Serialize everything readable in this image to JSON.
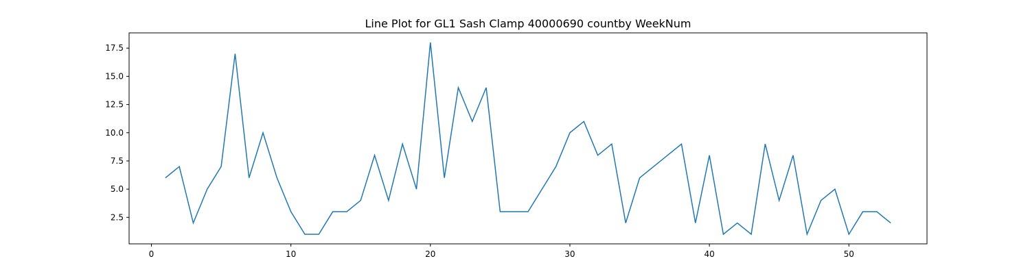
{
  "chart_data": {
    "type": "line",
    "title": "Line Plot for GL1 Sash Clamp 40000690 countby WeekNum",
    "xlabel": "",
    "ylabel": "",
    "xlim": [
      -1.6,
      55.6
    ],
    "ylim": [
      0.15,
      18.85
    ],
    "xticks": [
      0,
      10,
      20,
      30,
      40,
      50
    ],
    "yticks": [
      2.5,
      5.0,
      7.5,
      10.0,
      12.5,
      15.0,
      17.5
    ],
    "ytick_labels": [
      "2.5",
      "5.0",
      "7.5",
      "10.0",
      "12.5",
      "15.0",
      "17.5"
    ],
    "grid": false,
    "line_color": "#1f77b4",
    "series": [
      {
        "x": [
          1,
          2,
          3,
          4,
          5,
          6,
          7,
          8,
          9,
          10,
          11,
          12,
          13,
          14,
          15,
          16,
          17,
          18,
          19,
          20,
          21,
          22,
          23,
          24,
          25,
          26,
          27,
          28,
          29,
          30,
          31,
          32,
          33,
          34,
          35,
          36,
          37,
          38,
          39,
          40,
          41,
          42,
          43,
          44,
          45,
          46,
          47,
          48,
          49,
          50,
          51,
          52,
          53
        ],
        "values": [
          6,
          7,
          2,
          5,
          7,
          17,
          6,
          10,
          6,
          3,
          1,
          1,
          3,
          3,
          4,
          8,
          4,
          9,
          5,
          18,
          6,
          14,
          11,
          14,
          3,
          3,
          3,
          5,
          7,
          10,
          11,
          8,
          9,
          2,
          6,
          7,
          8,
          9,
          2,
          8,
          1,
          2,
          1,
          9,
          4,
          8,
          1,
          4,
          5,
          1,
          3,
          3,
          2
        ]
      }
    ]
  }
}
